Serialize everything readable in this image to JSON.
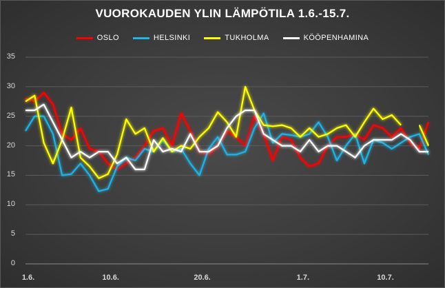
{
  "chart_data": {
    "type": "line",
    "title": "VUOROKAUDEN YLIN LÄMPÖTILA 1.6.-15.7.",
    "ylim": [
      0,
      35
    ],
    "yticks": [
      "0",
      "5",
      "10",
      "15",
      "20",
      "25",
      "30",
      "35"
    ],
    "xticks": [
      {
        "index": 0,
        "label": "1.6."
      },
      {
        "index": 9,
        "label": "10.6."
      },
      {
        "index": 19,
        "label": "20.6."
      },
      {
        "index": 30,
        "label": "1.7."
      },
      {
        "index": 39,
        "label": "10.7."
      }
    ],
    "x_count": 45,
    "grid": true,
    "legend_position": "top",
    "series": [
      {
        "name": "OSLO",
        "color": "#ff0000",
        "values": [
          28,
          27.5,
          29,
          27,
          22,
          21,
          23,
          19.5,
          19,
          17,
          16,
          17,
          18,
          20,
          22.5,
          23,
          20,
          25.5,
          22.5,
          19,
          18.5,
          20,
          22.5,
          21.5,
          20,
          25,
          22,
          17.5,
          21.5,
          21,
          18,
          16.5,
          17,
          20,
          21.5,
          21.5,
          22,
          21,
          23.5,
          23,
          21.5,
          23,
          20.5,
          19.5,
          24
        ]
      },
      {
        "name": "HELSINKI",
        "color": "#1fb4e6",
        "values": [
          22.5,
          25,
          25,
          22,
          15,
          15.2,
          17,
          15,
          12.3,
          12.7,
          16.5,
          18,
          17.5,
          19.5,
          19,
          21,
          19,
          19.5,
          17,
          15,
          19.5,
          21.5,
          18.5,
          18.5,
          19,
          23,
          25.5,
          20.5,
          22,
          21.8,
          21.5,
          22,
          24,
          21.5,
          17.5,
          20,
          22,
          17,
          21,
          20.5,
          19.5,
          20.5,
          21.5,
          22,
          18.5
        ]
      },
      {
        "name": "TUKHOLMA",
        "color": "#ffff00",
        "values": [
          27.5,
          28.5,
          20.5,
          17,
          21,
          26.5,
          18,
          16.5,
          14.5,
          15.2,
          18.5,
          24.5,
          22,
          23,
          19,
          21.3,
          19,
          20,
          19.5,
          21.5,
          23,
          25.7,
          24,
          21.5,
          30,
          26,
          23.5,
          23.3,
          23.5,
          23,
          21.5,
          23,
          21.5,
          22,
          23,
          23.5,
          21.5,
          24,
          26.3,
          24.5,
          25.2,
          23.5,
          null,
          23.5,
          20
        ]
      },
      {
        "name": "KÖÖPENHAMINA",
        "color": "#ffffff",
        "values": [
          26,
          26,
          27,
          24,
          21,
          18,
          19,
          18,
          19,
          19,
          17,
          18,
          16,
          16,
          21,
          19,
          19.5,
          19,
          22,
          19,
          19,
          20,
          23,
          25,
          26,
          26,
          22,
          21,
          20,
          20,
          19,
          21,
          19,
          20,
          20,
          19,
          18,
          20,
          21,
          21,
          21,
          22,
          21,
          19,
          19
        ]
      }
    ]
  }
}
